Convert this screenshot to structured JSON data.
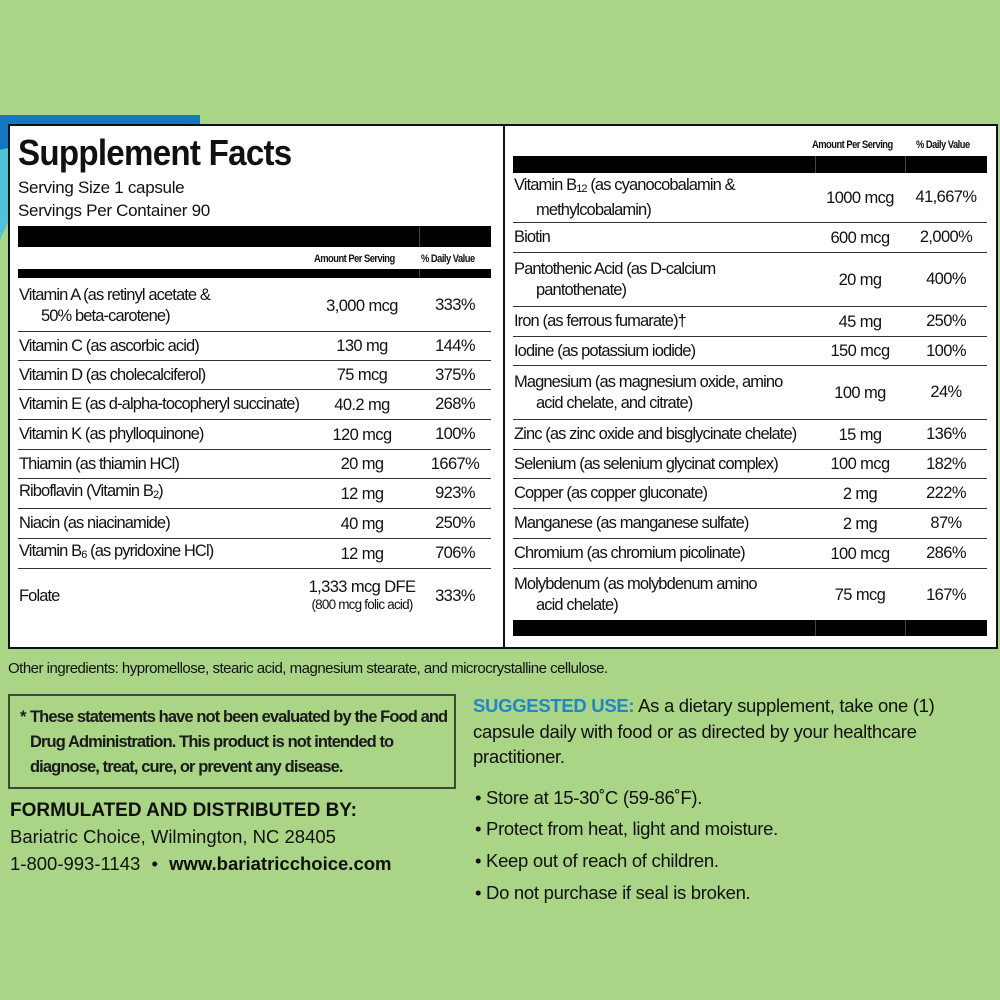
{
  "colors": {
    "background": "#aad486",
    "accent_blue": "#1f86c8",
    "decor_blue": "#1477c2",
    "decor_teal": "#4fc3d8"
  },
  "panel": {
    "title": "Supplement Facts",
    "serving_size": "Serving Size 1 capsule",
    "servings_per_container": "Servings Per Container 90",
    "col_amount": "Amount Per Serving",
    "col_dv": "% Daily Value",
    "left_rows": [
      {
        "pre": "Vitamin A (as retinyl acetate &",
        "sub": "",
        "post": "",
        "line2": "50% beta-carotene)",
        "amount": "3,000 mcg",
        "dv": "333%"
      },
      {
        "pre": "Vitamin C (as ascorbic acid)",
        "sub": "",
        "post": "",
        "amount": "130 mg",
        "dv": "144%"
      },
      {
        "pre": "Vitamin D (as cholecalciferol)",
        "sub": "",
        "post": "",
        "amount": "75 mcg",
        "dv": "375%"
      },
      {
        "pre": "Vitamin E (as d-alpha-tocopheryl succinate)",
        "sub": "",
        "post": "",
        "amount": "40.2 mg",
        "dv": "268%"
      },
      {
        "pre": "Vitamin K (as phylloquinone)",
        "sub": "",
        "post": "",
        "amount": "120 mcg",
        "dv": "100%"
      },
      {
        "pre": "Thiamin (as thiamin HCl)",
        "sub": "",
        "post": "",
        "amount": "20 mg",
        "dv": "1667%"
      },
      {
        "pre": "Riboflavin (Vitamin B",
        "sub": "2",
        "post": ")",
        "amount": "12 mg",
        "dv": "923%"
      },
      {
        "pre": "Niacin (as niacinamide)",
        "sub": "",
        "post": "",
        "amount": "40 mg",
        "dv": "250%"
      },
      {
        "pre": "Vitamin B",
        "sub": "6",
        "post": " (as pyridoxine HCl)",
        "amount": "12 mg",
        "dv": "706%"
      },
      {
        "pre": "Folate",
        "sub": "",
        "post": "",
        "amount": "1,333 mcg DFE",
        "amount_note": "(800 mcg folic acid)",
        "dv": "333%"
      }
    ],
    "right_rows": [
      {
        "pre": "Vitamin B",
        "sub": "12",
        "post": " (as cyanocobalamin &",
        "line2": "methylcobalamin)",
        "amount": "1000 mcg",
        "dv": "41,667%"
      },
      {
        "pre": "Biotin",
        "sub": "",
        "post": "",
        "amount": "600 mcg",
        "dv": "2,000%"
      },
      {
        "pre": "Pantothenic Acid (as D-calcium",
        "sub": "",
        "post": "",
        "line2": "pantothenate)",
        "amount": "20 mg",
        "dv": "400%"
      },
      {
        "pre": "Iron (as ferrous fumarate)†",
        "sub": "",
        "post": "",
        "amount": "45 mg",
        "dv": "250%"
      },
      {
        "pre": "Iodine (as potassium iodide)",
        "sub": "",
        "post": "",
        "amount": "150 mcg",
        "dv": "100%"
      },
      {
        "pre": "Magnesium (as magnesium oxide, amino",
        "sub": "",
        "post": "",
        "line2": "acid chelate, and citrate)",
        "amount": "100 mg",
        "dv": "24%"
      },
      {
        "pre": "Zinc (as zinc oxide and bisglycinate chelate)",
        "sub": "",
        "post": "",
        "amount": "15 mg",
        "dv": "136%"
      },
      {
        "pre": "Selenium (as selenium glycinat complex)",
        "sub": "",
        "post": "",
        "amount": "100 mcg",
        "dv": "182%"
      },
      {
        "pre": "Copper (as copper gluconate)",
        "sub": "",
        "post": "",
        "amount": "2 mg",
        "dv": "222%"
      },
      {
        "pre": "Manganese (as manganese sulfate)",
        "sub": "",
        "post": "",
        "amount": "2 mg",
        "dv": "87%"
      },
      {
        "pre": "Chromium (as chromium picolinate)",
        "sub": "",
        "post": "",
        "amount": "100 mcg",
        "dv": "286%"
      },
      {
        "pre": "Molybdenum (as molybdenum amino",
        "sub": "",
        "post": "",
        "line2": "acid chelate)",
        "amount": "75 mcg",
        "dv": "167%"
      }
    ]
  },
  "other_ingredients": "Other ingredients: hypromellose, stearic acid, magnesium stearate, and microcrystalline cellulose.",
  "disclaimer": {
    "star": "*",
    "text": "These statements have not been evaluated by the Food and Drug Administration. This product is not intended to diagnose, treat, cure, or prevent any disease."
  },
  "distributor": {
    "heading": "FORMULATED AND DISTRIBUTED BY:",
    "address": "Bariatric Choice, Wilmington, NC 28405",
    "phone": "1-800-993-1143",
    "sep": "•",
    "website": "www.bariatricchoice.com"
  },
  "suggested_use": {
    "label": "SUGGESTED USE:",
    "text": "As a dietary supplement, take one (1) capsule daily with food or as directed by your healthcare practitioner."
  },
  "bullets": [
    "Store at 15-30˚C (59-86˚F).",
    "Protect from heat, light and moisture.",
    "Keep out of reach of children.",
    "Do not purchase if seal is broken."
  ]
}
